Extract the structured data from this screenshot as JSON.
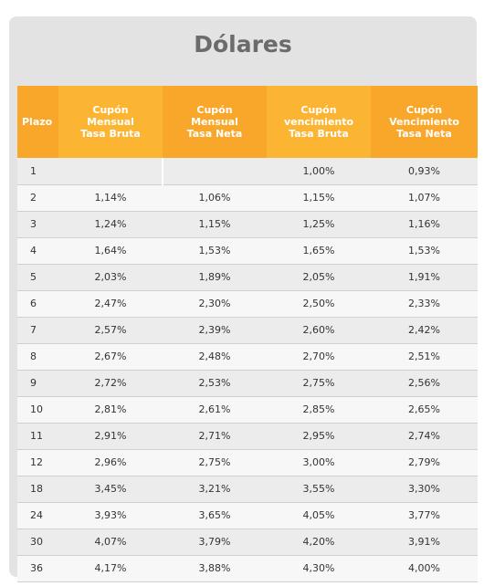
{
  "title": "Dólares",
  "headers": {
    "plazo": "Plazo",
    "col1": [
      "Cupón",
      "Mensual",
      "Tasa Bruta"
    ],
    "col2": [
      "Cupón",
      "Mensual",
      "Tasa Neta"
    ],
    "col3": [
      "Cupón",
      "vencimiento",
      "Tasa Bruta"
    ],
    "col4": [
      "Cupón",
      "Vencimiento",
      "Tasa Neta"
    ]
  },
  "rows": [
    {
      "plazo": "1",
      "cmb": "",
      "cmn": "",
      "cvb": "1,00%",
      "cvn": "0,93%"
    },
    {
      "plazo": "2",
      "cmb": "1,14%",
      "cmn": "1,06%",
      "cvb": "1,15%",
      "cvn": "1,07%"
    },
    {
      "plazo": "3",
      "cmb": "1,24%",
      "cmn": "1,15%",
      "cvb": "1,25%",
      "cvn": "1,16%"
    },
    {
      "plazo": "4",
      "cmb": "1,64%",
      "cmn": "1,53%",
      "cvb": "1,65%",
      "cvn": "1,53%"
    },
    {
      "plazo": "5",
      "cmb": "2,03%",
      "cmn": "1,89%",
      "cvb": "2,05%",
      "cvn": "1,91%"
    },
    {
      "plazo": "6",
      "cmb": "2,47%",
      "cmn": "2,30%",
      "cvb": "2,50%",
      "cvn": "2,33%"
    },
    {
      "plazo": "7",
      "cmb": "2,57%",
      "cmn": "2,39%",
      "cvb": "2,60%",
      "cvn": "2,42%"
    },
    {
      "plazo": "8",
      "cmb": "2,67%",
      "cmn": "2,48%",
      "cvb": "2,70%",
      "cvn": "2,51%"
    },
    {
      "plazo": "9",
      "cmb": "2,72%",
      "cmn": "2,53%",
      "cvb": "2,75%",
      "cvn": "2,56%"
    },
    {
      "plazo": "10",
      "cmb": "2,81%",
      "cmn": "2,61%",
      "cvb": "2,85%",
      "cvn": "2,65%"
    },
    {
      "plazo": "11",
      "cmb": "2,91%",
      "cmn": "2,71%",
      "cvb": "2,95%",
      "cvn": "2,74%"
    },
    {
      "plazo": "12",
      "cmb": "2,96%",
      "cmn": "2,75%",
      "cvb": "3,00%",
      "cvn": "2,79%"
    },
    {
      "plazo": "18",
      "cmb": "3,45%",
      "cmn": "3,21%",
      "cvb": "3,55%",
      "cvn": "3,30%"
    },
    {
      "plazo": "24",
      "cmb": "3,93%",
      "cmn": "3,65%",
      "cvb": "4,05%",
      "cvn": "3,77%"
    },
    {
      "plazo": "30",
      "cmb": "4,07%",
      "cmn": "3,79%",
      "cvb": "4,20%",
      "cvn": "3,91%"
    },
    {
      "plazo": "36",
      "cmb": "4,17%",
      "cmn": "3,88%",
      "cvb": "4,30%",
      "cvn": "4,00%"
    }
  ],
  "colors": {
    "header_orange": "#f9a72b",
    "header_orange_alt": "#fbb533",
    "title_gray": "#6b6b6b",
    "card_gray": "#e3e3e3"
  }
}
